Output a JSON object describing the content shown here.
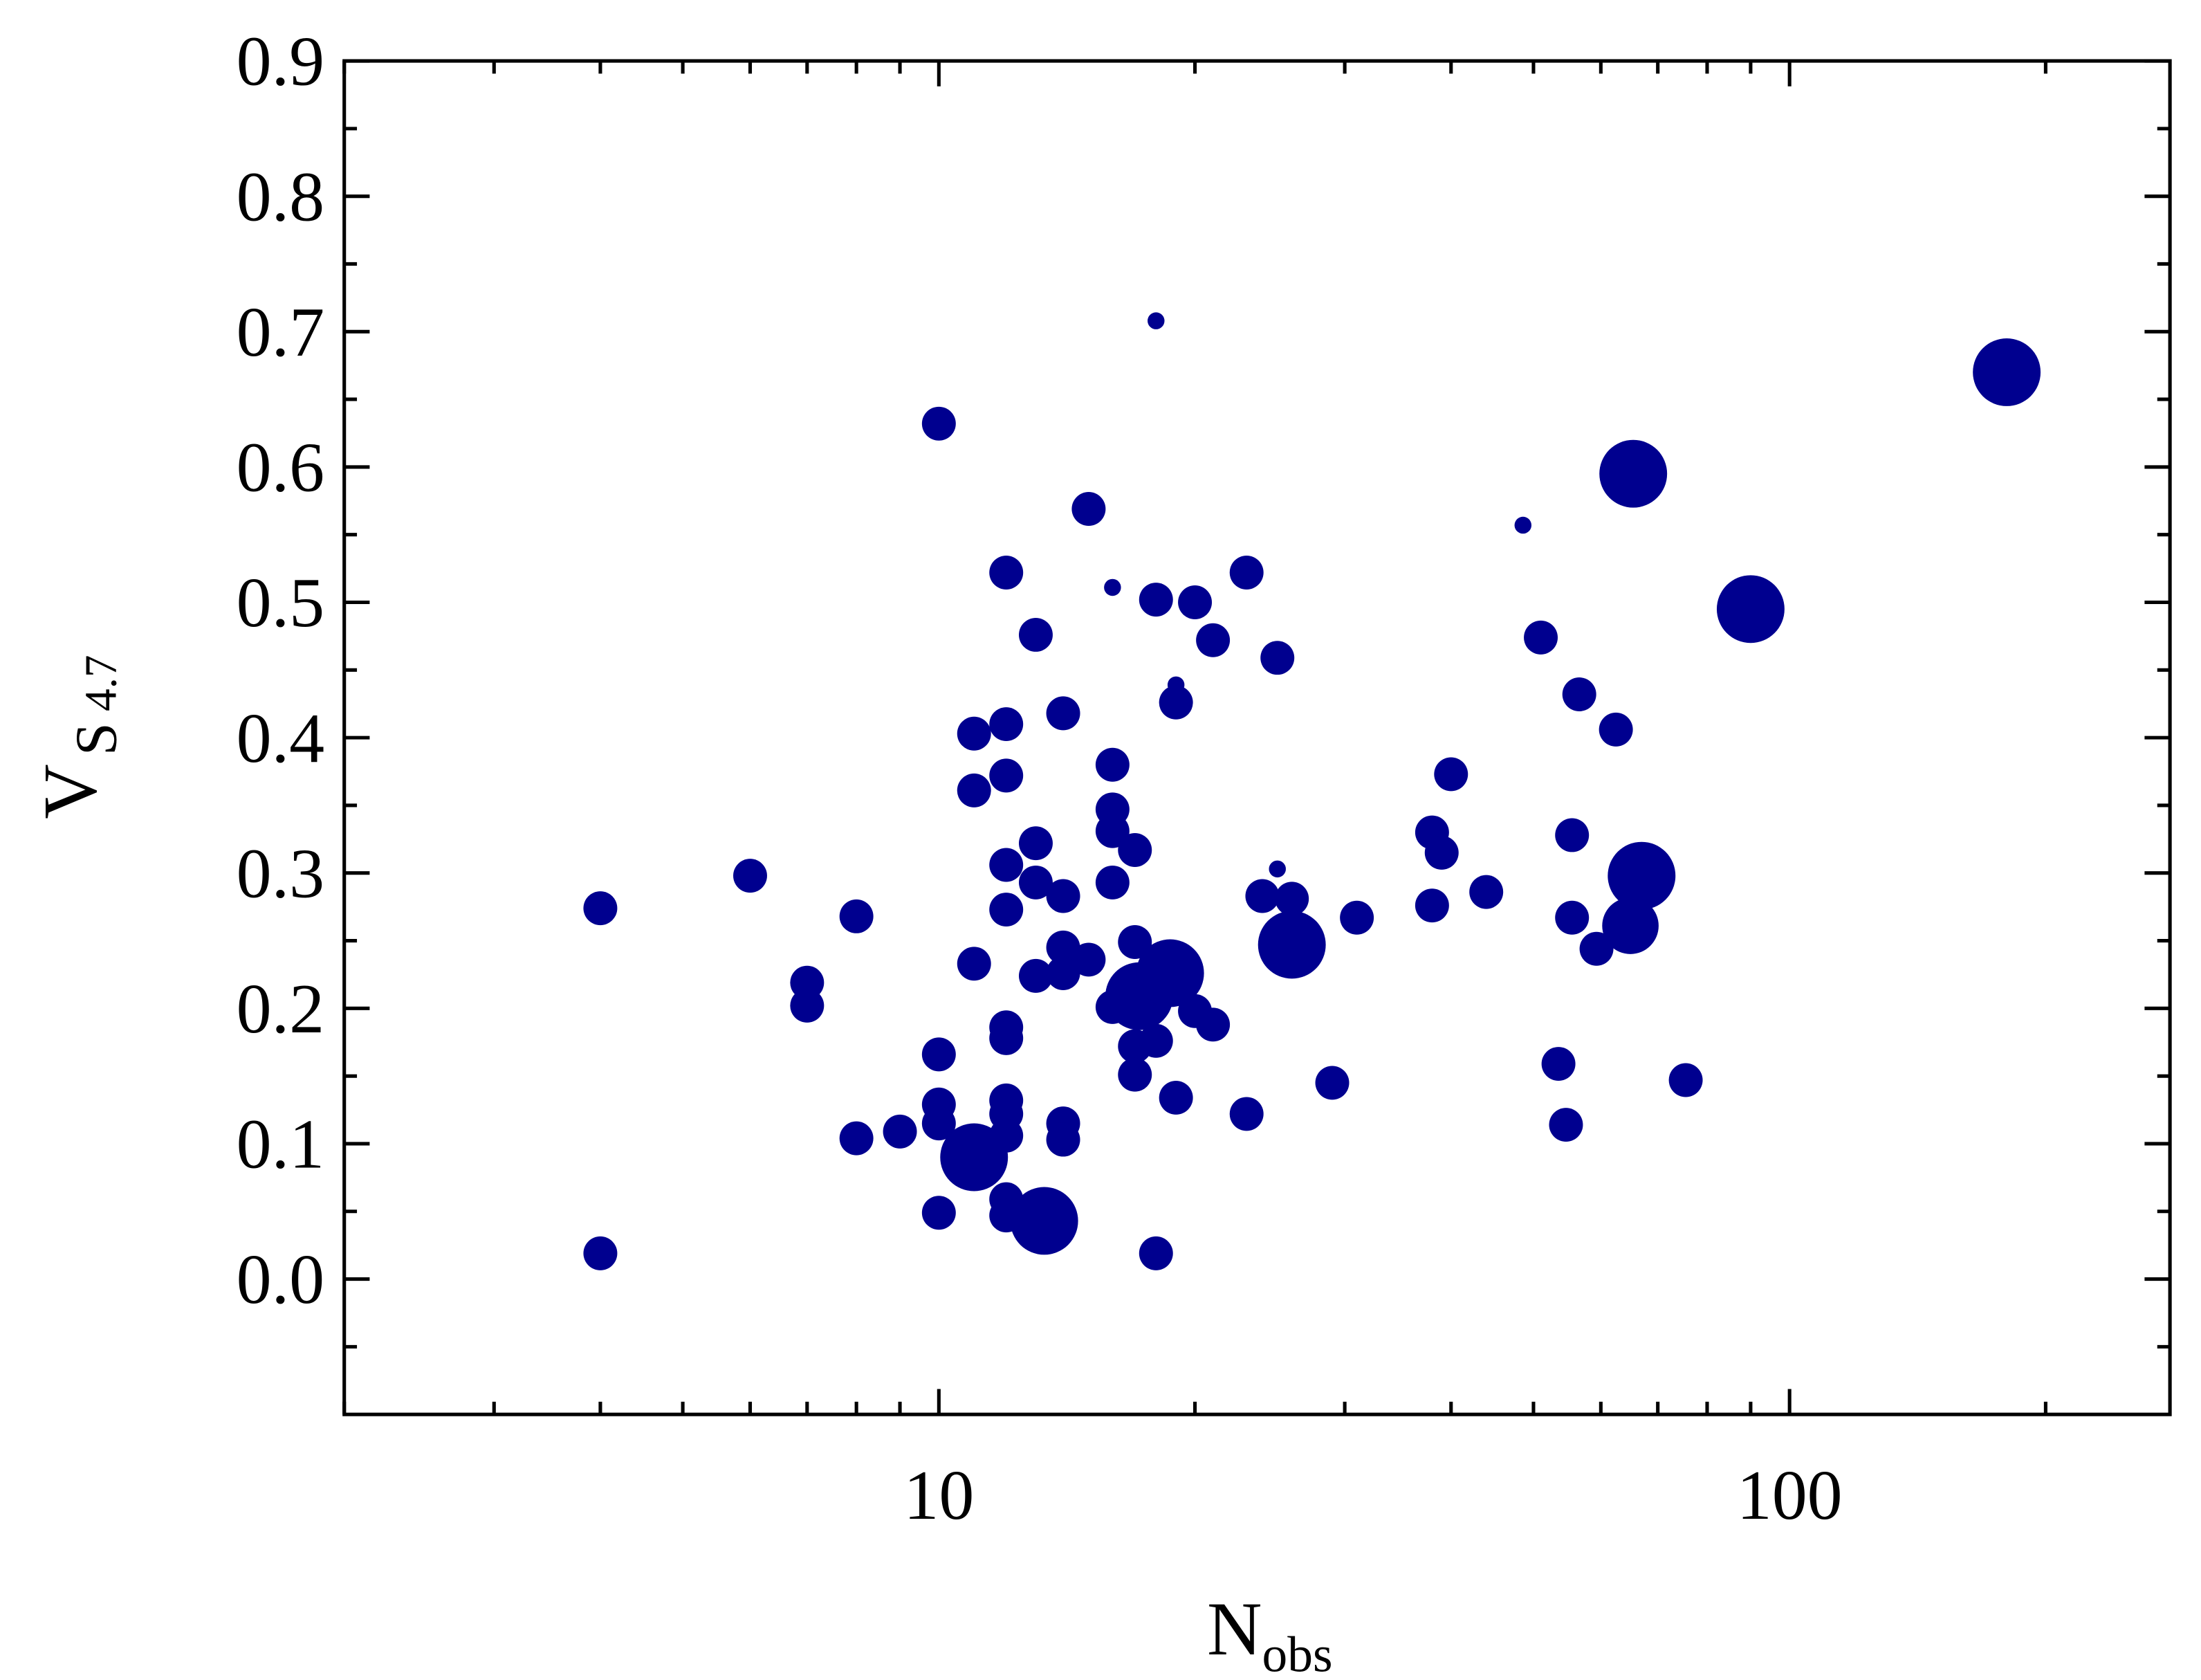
{
  "chart_data": {
    "type": "scatter",
    "xlabel": {
      "main": "N",
      "sub": "obs"
    },
    "ylabel": {
      "main": "V",
      "sub": "S",
      "subsub": "4.7"
    },
    "color": "#00008f",
    "log_x": true,
    "xlim": [
      2,
      280
    ],
    "xticks": [
      10,
      100
    ],
    "xminorticks": [
      2,
      3,
      4,
      5,
      6,
      7,
      8,
      9,
      20,
      30,
      40,
      50,
      60,
      70,
      80,
      90,
      200
    ],
    "ylim": [
      -0.1,
      0.9
    ],
    "yticks": [
      {
        "value": 0,
        "label": "0.0"
      },
      0.1,
      0.2,
      0.3,
      0.4,
      0.5,
      0.6,
      0.7,
      0.8,
      0.9
    ],
    "yminorticks": [
      -0.05,
      0.05,
      0.15,
      0.25,
      0.35,
      0.45,
      0.55,
      0.65,
      0.75,
      0.85
    ],
    "x": [
      4,
      4,
      6,
      7,
      7,
      8,
      8,
      9,
      10,
      10,
      10,
      10,
      10,
      11,
      11,
      11,
      11,
      12,
      12,
      12,
      12,
      12,
      12,
      12,
      12,
      12,
      12,
      12,
      12,
      13,
      13,
      13,
      13,
      13.3,
      14,
      14,
      14,
      14,
      14,
      14,
      15,
      15,
      16,
      16,
      16,
      16,
      16,
      16,
      17,
      17,
      17,
      17,
      17.2,
      18,
      18,
      18,
      18,
      18.7,
      19,
      19,
      19,
      20,
      20,
      21,
      21,
      23,
      23,
      24,
      25,
      25,
      26,
      26,
      29,
      31,
      38,
      38,
      39,
      40,
      44,
      48.6,
      51,
      53.5,
      54.6,
      55.5,
      55.5,
      56.6,
      59.3,
      62.5,
      65,
      65.5,
      67,
      75.5,
      90,
      180
    ],
    "values": [
      0.274,
      0.019,
      0.298,
      0.219,
      0.202,
      0.268,
      0.104,
      0.109,
      0.632,
      0.166,
      0.129,
      0.115,
      0.049,
      0.403,
      0.361,
      0.233,
      0.09,
      0.522,
      0.41,
      0.372,
      0.306,
      0.273,
      0.186,
      0.178,
      0.132,
      0.122,
      0.106,
      0.059,
      0.047,
      0.476,
      0.322,
      0.293,
      0.224,
      0.043,
      0.418,
      0.283,
      0.245,
      0.226,
      0.115,
      0.103,
      0.569,
      0.236,
      0.511,
      0.38,
      0.347,
      0.331,
      0.293,
      0.201,
      0.317,
      0.249,
      0.172,
      0.151,
      0.209,
      0.708,
      0.502,
      0.176,
      0.019,
      0.226,
      0.439,
      0.426,
      0.134,
      0.5,
      0.198,
      0.472,
      0.188,
      0.522,
      0.122,
      0.283,
      0.303,
      0.459,
      0.281,
      0.247,
      0.145,
      0.267,
      0.33,
      0.276,
      0.315,
      0.373,
      0.286,
      0.557,
      0.474,
      0.159,
      0.114,
      0.328,
      0.267,
      0.432,
      0.244,
      0.406,
      0.261,
      0.595,
      0.298,
      0.147,
      0.495,
      0.67
    ],
    "sizes": [
      12,
      12,
      12,
      12,
      12,
      12,
      12,
      12,
      12,
      12,
      12,
      12,
      12,
      12,
      12,
      12,
      24,
      12,
      12,
      12,
      12,
      12,
      12,
      12,
      12,
      12,
      12,
      12,
      12,
      12,
      12,
      12,
      12,
      24,
      12,
      12,
      12,
      12,
      12,
      12,
      12,
      12,
      6,
      12,
      12,
      12,
      12,
      12,
      12,
      12,
      12,
      12,
      24,
      6,
      12,
      12,
      12,
      24,
      6,
      12,
      12,
      12,
      12,
      12,
      12,
      12,
      12,
      12,
      6,
      12,
      12,
      24,
      12,
      12,
      12,
      12,
      12,
      12,
      12,
      6,
      12,
      12,
      12,
      12,
      12,
      12,
      12,
      12,
      20,
      24,
      24,
      12,
      24,
      24
    ]
  }
}
